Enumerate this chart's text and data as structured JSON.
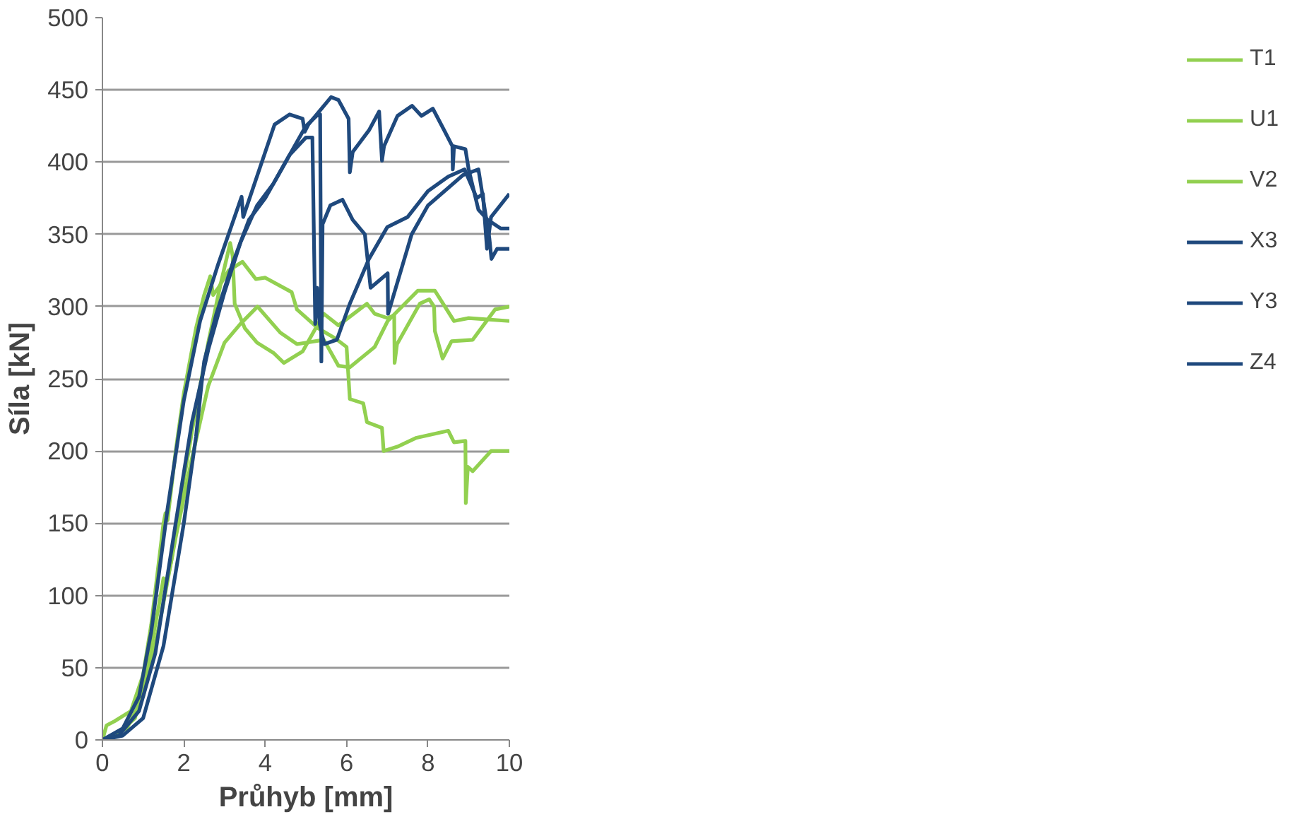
{
  "chart_data": {
    "type": "line",
    "xlabel": "Průhyb [mm]",
    "ylabel": "Síla [kN]",
    "xlim": [
      0,
      10
    ],
    "xticks": [
      0,
      2,
      4,
      6,
      8,
      10
    ],
    "ylim": [
      0,
      500
    ],
    "yticks": [
      0,
      50,
      100,
      150,
      200,
      250,
      300,
      350,
      400,
      450,
      500
    ],
    "grid": "y",
    "legend": "right",
    "line_style": "solid",
    "marker": "none",
    "series": [
      {
        "name": "T1",
        "color": "#92d050",
        "x": [
          0,
          0.1,
          0.3,
          0.7,
          1.0,
          1.2,
          1.5,
          1.55,
          1.6,
          1.8,
          2.0,
          2.3,
          2.5,
          2.65,
          2.72,
          2.85,
          3.1,
          3.44,
          3.77,
          4.0,
          4.65,
          4.78,
          5.3,
          5.72,
          6.0,
          6.08,
          6.41,
          6.5,
          6.87,
          6.91,
          7.25,
          7.7,
          8.5,
          8.64,
          8.92,
          8.93,
          8.98,
          9.1,
          9.55,
          10
        ],
        "values": [
          0,
          10,
          13,
          20,
          45,
          80,
          150,
          157,
          152,
          200,
          240,
          285,
          308,
          321,
          308,
          313,
          325,
          331,
          319,
          320,
          310,
          298,
          285,
          278,
          272,
          236,
          233,
          220,
          216,
          200,
          203,
          209,
          214,
          206,
          207,
          164,
          189,
          186,
          200,
          200
        ]
      },
      {
        "name": "U1",
        "color": "#92d050",
        "x": [
          0,
          0.4,
          0.8,
          1.1,
          1.4,
          1.5,
          1.55,
          1.7,
          2.0,
          2.3,
          2.6,
          2.9,
          3.14,
          3.2,
          3.25,
          3.5,
          3.8,
          4.2,
          4.46,
          4.92,
          5.44,
          5.8,
          6.5,
          6.69,
          7.01,
          7.17,
          7.18,
          7.24,
          7.8,
          8.03,
          8.15,
          8.17,
          8.36,
          8.58,
          9.1,
          9.65,
          10
        ],
        "values": [
          0,
          5,
          15,
          50,
          95,
          112,
          105,
          125,
          180,
          230,
          275,
          315,
          344,
          335,
          302,
          285,
          275,
          268,
          261,
          269,
          295,
          287,
          302,
          295,
          292,
          294,
          261,
          274,
          302,
          305,
          300,
          283,
          264,
          276,
          277,
          298,
          300
        ]
      },
      {
        "name": "V2",
        "color": "#92d050",
        "x": [
          0,
          0.6,
          1.0,
          1.4,
          1.8,
          2.2,
          2.6,
          3.0,
          3.39,
          3.81,
          4.37,
          4.78,
          5.44,
          5.8,
          6.08,
          6.69,
          7.01,
          7.75,
          8.17,
          8.64,
          9.0,
          10
        ],
        "values": [
          0,
          8,
          30,
          80,
          140,
          195,
          245,
          275,
          288,
          300,
          282,
          274,
          277,
          259,
          258,
          272,
          290,
          311,
          311,
          290,
          292,
          290
        ]
      },
      {
        "name": "X3",
        "color": "#1f497d",
        "x": [
          0,
          0.5,
          1.0,
          1.5,
          2.0,
          2.3,
          2.45,
          2.5,
          2.8,
          3.2,
          3.6,
          4.0,
          4.4,
          4.8,
          5.0,
          5.3,
          5.35,
          5.38,
          5.41,
          5.6,
          5.9,
          6.15,
          6.45,
          6.59,
          7.01,
          7.02,
          7.6,
          8.0,
          8.86,
          9.24,
          9.51,
          9.56,
          9.7,
          10
        ],
        "values": [
          0,
          3,
          15,
          65,
          150,
          210,
          250,
          262,
          295,
          330,
          360,
          375,
          395,
          415,
          425,
          433,
          433,
          262,
          357,
          370,
          374,
          360,
          350,
          313,
          323,
          295,
          350,
          370,
          391,
          395,
          347,
          333,
          340,
          340
        ]
      },
      {
        "name": "Y3",
        "color": "#1f497d",
        "x": [
          0,
          0.4,
          0.9,
          1.3,
          1.8,
          2.2,
          2.6,
          3.0,
          3.4,
          3.8,
          4.2,
          4.6,
          5.0,
          5.16,
          5.23,
          5.28,
          5.34,
          5.45,
          5.76,
          6.08,
          6.55,
          7.0,
          7.5,
          8.0,
          8.5,
          8.9,
          9.05,
          9.2,
          9.35,
          9.45,
          9.55,
          10
        ],
        "values": [
          0,
          3,
          20,
          60,
          150,
          220,
          270,
          310,
          345,
          370,
          385,
          405,
          417,
          417,
          288,
          313,
          288,
          274,
          277,
          302,
          333,
          355,
          362,
          380,
          390,
          395,
          385,
          375,
          378,
          340,
          362,
          378
        ]
      },
      {
        "name": "Z4",
        "color": "#1f497d",
        "x": [
          0,
          0.5,
          0.9,
          1.2,
          1.6,
          2.0,
          2.4,
          2.84,
          3.42,
          3.46,
          4.23,
          4.6,
          4.92,
          4.97,
          5.06,
          5.62,
          5.8,
          6.05,
          6.08,
          6.15,
          6.55,
          6.8,
          6.87,
          6.92,
          7.25,
          7.61,
          7.84,
          8.12,
          8.4,
          8.6,
          8.61,
          8.64,
          8.92,
          9.0,
          9.24,
          9.47,
          9.79,
          10
        ],
        "values": [
          0,
          8,
          30,
          75,
          160,
          235,
          290,
          329,
          376,
          362,
          426,
          433,
          430,
          421,
          426,
          445,
          443,
          430,
          393,
          407,
          422,
          435,
          401,
          411,
          432,
          439,
          432,
          437,
          422,
          411,
          395,
          411,
          409,
          395,
          367,
          360,
          354,
          354
        ]
      }
    ]
  }
}
